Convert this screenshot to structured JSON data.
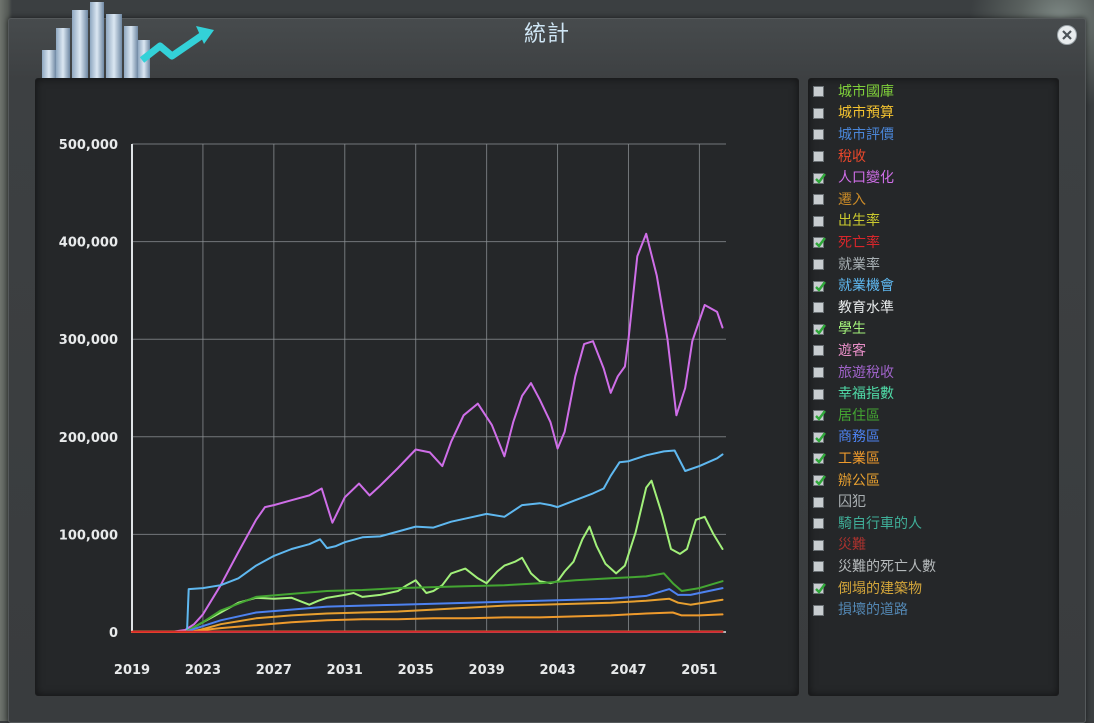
{
  "window": {
    "title": "統計",
    "close_icon": "close-icon",
    "logo_icon": "city-growth-logo-icon"
  },
  "legend": [
    {
      "label": "城市國庫",
      "color": "#7fcf3a",
      "checked": false
    },
    {
      "label": "城市預算",
      "color": "#f2c230",
      "checked": false
    },
    {
      "label": "城市評價",
      "color": "#4a86d8",
      "checked": false
    },
    {
      "label": "稅收",
      "color": "#e8472b",
      "checked": false
    },
    {
      "label": "人口變化",
      "color": "#cf6ee8",
      "checked": true
    },
    {
      "label": "遷入",
      "color": "#c98a28",
      "checked": false
    },
    {
      "label": "出生率",
      "color": "#c9c82e",
      "checked": false
    },
    {
      "label": "死亡率",
      "color": "#d8262b",
      "checked": true
    },
    {
      "label": "就業率",
      "color": "#a8b0b4",
      "checked": false
    },
    {
      "label": "就業機會",
      "color": "#5fb8f0",
      "checked": true
    },
    {
      "label": "教育水準",
      "color": "#e6e9ea",
      "checked": false
    },
    {
      "label": "學生",
      "color": "#a2f07a",
      "checked": true
    },
    {
      "label": "遊客",
      "color": "#e68ec6",
      "checked": false
    },
    {
      "label": "旅遊稅收",
      "color": "#9f63c9",
      "checked": false
    },
    {
      "label": "幸福指數",
      "color": "#4fd9a6",
      "checked": false
    },
    {
      "label": "居住區",
      "color": "#44a632",
      "checked": true
    },
    {
      "label": "商務區",
      "color": "#4d82f0",
      "checked": true
    },
    {
      "label": "工業區",
      "color": "#ee9a2c",
      "checked": true
    },
    {
      "label": "辦公區",
      "color": "#e8a030",
      "checked": true
    },
    {
      "label": "囚犯",
      "color": "#aab0b3",
      "checked": false
    },
    {
      "label": "騎自行車的人",
      "color": "#3fae98",
      "checked": false
    },
    {
      "label": "災難",
      "color": "#a8322e",
      "checked": false
    },
    {
      "label": "災難的死亡人數",
      "color": "#b5b9bb",
      "checked": false
    },
    {
      "label": "倒塌的建築物",
      "color": "#d4a63b",
      "checked": true
    },
    {
      "label": "損壞的道路",
      "color": "#5387b3",
      "checked": false
    }
  ],
  "chart_data": {
    "type": "line",
    "ylim": [
      0,
      500000
    ],
    "xlim": [
      2019,
      2052.5
    ],
    "y_ticks": [
      0,
      100000,
      200000,
      300000,
      400000,
      500000
    ],
    "y_tick_labels": [
      "0",
      "100,000",
      "200,000",
      "300,000",
      "400,000",
      "500,000"
    ],
    "x_ticks": [
      2019,
      2023,
      2027,
      2031,
      2035,
      2039,
      2043,
      2047,
      2051
    ],
    "x_tick_labels": [
      "2019",
      "2023",
      "2027",
      "2031",
      "2035",
      "2039",
      "2043",
      "2047",
      "2051"
    ],
    "grid": true,
    "series": [
      {
        "color": "#cf6ee8",
        "x": [
          2019,
          2021.2,
          2022,
          2022.5,
          2023,
          2024,
          2025,
          2026,
          2026.5,
          2027,
          2028,
          2029,
          2029.7,
          2030.3,
          2031,
          2031.8,
          2032.4,
          2033,
          2034,
          2035,
          2035.8,
          2036.5,
          2037,
          2037.7,
          2038.5,
          2039.3,
          2040,
          2040.5,
          2041,
          2041.5,
          2042,
          2042.6,
          2043,
          2043.4,
          2044,
          2044.5,
          2045,
          2045.6,
          2046,
          2046.4,
          2046.8,
          2047,
          2047.5,
          2048,
          2048.6,
          2049.2,
          2049.7,
          2050.2,
          2050.6,
          2051.3,
          2052,
          2052.3
        ],
        "y": [
          0,
          0,
          2000,
          8000,
          18000,
          48000,
          82000,
          115000,
          128000,
          130000,
          135000,
          140000,
          147000,
          112000,
          138000,
          152000,
          140000,
          150000,
          168000,
          187000,
          184000,
          170000,
          195000,
          222000,
          234000,
          212000,
          180000,
          215000,
          242000,
          255000,
          238000,
          215000,
          188000,
          205000,
          262000,
          295000,
          298000,
          270000,
          245000,
          262000,
          272000,
          300000,
          385000,
          408000,
          365000,
          300000,
          222000,
          250000,
          298000,
          335000,
          328000,
          312000
        ]
      },
      {
        "color": "#5fb8f0",
        "x": [
          2019,
          2022.1,
          2022.2,
          2023,
          2024,
          2025,
          2026,
          2027,
          2028,
          2029,
          2029.6,
          2030,
          2030.5,
          2031,
          2032,
          2033,
          2034,
          2035,
          2036,
          2037,
          2038,
          2039,
          2040,
          2041,
          2042,
          2042.6,
          2043,
          2044,
          2045,
          2045.6,
          2046,
          2046.5,
          2047,
          2048,
          2049,
          2049.6,
          2050.2,
          2051,
          2052,
          2052.3
        ],
        "y": [
          0,
          0,
          44000,
          45000,
          48000,
          55000,
          68000,
          78000,
          85000,
          90000,
          95000,
          86000,
          88000,
          92000,
          97000,
          98000,
          103000,
          108000,
          107000,
          113000,
          117000,
          121000,
          118000,
          130000,
          132000,
          130000,
          128000,
          135000,
          142000,
          147000,
          160000,
          174000,
          175000,
          181000,
          185000,
          186000,
          165000,
          170000,
          178000,
          182000
        ]
      },
      {
        "color": "#a2f07a",
        "x": [
          2019,
          2022,
          2023,
          2024,
          2025,
          2026,
          2027,
          2028,
          2029,
          2029.5,
          2030,
          2031,
          2031.5,
          2032,
          2033,
          2034,
          2034.5,
          2035,
          2035.6,
          2036,
          2036.5,
          2037,
          2037.8,
          2038.5,
          2039,
          2039.6,
          2040,
          2040.6,
          2041,
          2041.5,
          2042,
          2042.6,
          2043,
          2043.4,
          2043.9,
          2044.4,
          2044.8,
          2045.2,
          2045.7,
          2046.3,
          2046.8,
          2047.4,
          2048,
          2048.3,
          2048.9,
          2049.4,
          2049.9,
          2050.3,
          2050.8,
          2051.3,
          2051.8,
          2052.3
        ],
        "y": [
          0,
          0,
          10000,
          20000,
          30000,
          35000,
          34000,
          35000,
          28000,
          32000,
          35000,
          38000,
          40000,
          36000,
          38000,
          42000,
          48000,
          53000,
          40000,
          42000,
          48000,
          60000,
          65000,
          55000,
          50000,
          62000,
          68000,
          72000,
          76000,
          60000,
          52000,
          50000,
          52000,
          62000,
          72000,
          95000,
          108000,
          88000,
          70000,
          60000,
          68000,
          102000,
          148000,
          155000,
          120000,
          85000,
          80000,
          85000,
          115000,
          118000,
          100000,
          85000
        ]
      },
      {
        "color": "#44a632",
        "x": [
          2019,
          2022,
          2023,
          2024,
          2026,
          2028,
          2030,
          2032,
          2034,
          2036,
          2038,
          2040,
          2042,
          2044,
          2046,
          2048,
          2049,
          2049.5,
          2050,
          2051,
          2052.3
        ],
        "y": [
          0,
          0,
          10000,
          22000,
          36000,
          39000,
          42000,
          43000,
          45000,
          46000,
          47000,
          48000,
          50000,
          53000,
          55000,
          57000,
          60000,
          50000,
          42000,
          45000,
          52000
        ]
      },
      {
        "color": "#4d82f0",
        "x": [
          2019,
          2022,
          2023,
          2024,
          2026,
          2028,
          2030,
          2032,
          2034,
          2036,
          2038,
          2040,
          2042,
          2044,
          2046,
          2048,
          2049.3,
          2049.8,
          2050.5,
          2052.3
        ],
        "y": [
          0,
          0,
          6000,
          12000,
          20000,
          23000,
          26000,
          27000,
          28000,
          29000,
          30000,
          31000,
          32000,
          33000,
          34000,
          37000,
          44000,
          38000,
          38000,
          45000
        ]
      },
      {
        "color": "#e8a030",
        "x": [
          2019,
          2022.3,
          2023,
          2024,
          2026,
          2028,
          2030,
          2032,
          2034,
          2036,
          2038,
          2040,
          2042,
          2044,
          2046,
          2048,
          2049.3,
          2049.8,
          2050.5,
          2052.3
        ],
        "y": [
          0,
          0,
          3000,
          8000,
          14000,
          17000,
          19000,
          20000,
          21000,
          23000,
          25000,
          27000,
          28000,
          29000,
          30000,
          32000,
          34000,
          30000,
          28000,
          33000
        ]
      },
      {
        "color": "#ee9a2c",
        "x": [
          2019,
          2022.5,
          2023,
          2024,
          2026,
          2028,
          2030,
          2032,
          2034,
          2036,
          2038,
          2040,
          2042,
          2044,
          2046,
          2048,
          2049.5,
          2050,
          2051,
          2052.3
        ],
        "y": [
          0,
          0,
          2000,
          4000,
          7000,
          10000,
          12000,
          13000,
          13000,
          14000,
          14000,
          15000,
          15000,
          16000,
          17000,
          19000,
          20000,
          17000,
          17000,
          18000
        ]
      },
      {
        "color": "#d4a63b",
        "x": [
          2019,
          2052.3
        ],
        "y": [
          500,
          500
        ]
      },
      {
        "color": "#d8262b",
        "x": [
          2019,
          2052.3
        ],
        "y": [
          200,
          300
        ]
      }
    ]
  }
}
